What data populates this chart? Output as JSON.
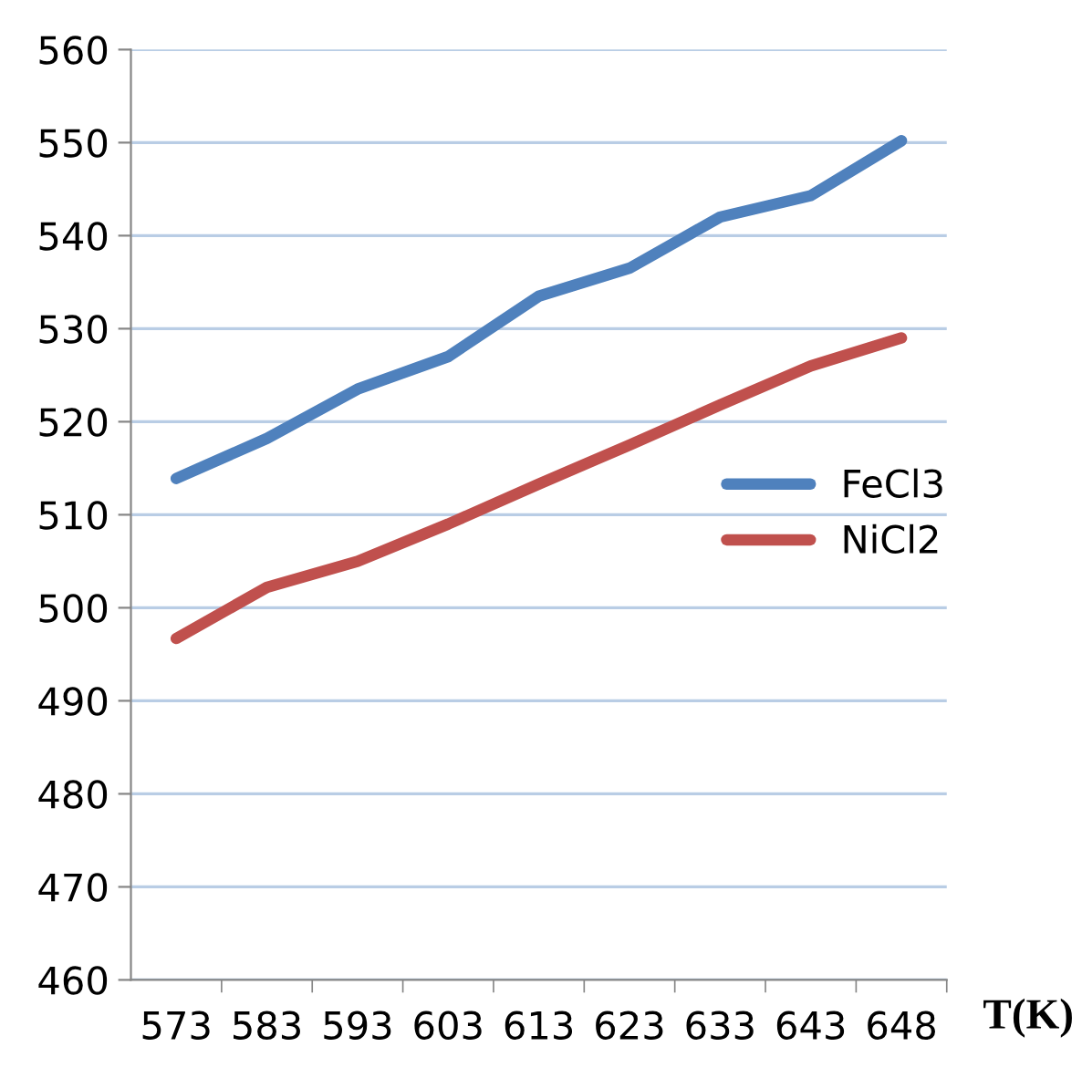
{
  "chart_data": {
    "type": "line",
    "xlabel": "T(K)",
    "categories": [
      "573",
      "583",
      "593",
      "603",
      "613",
      "623",
      "633",
      "643",
      "648"
    ],
    "ylim": [
      460,
      560
    ],
    "yticks": [
      460,
      470,
      480,
      490,
      500,
      510,
      520,
      530,
      540,
      550,
      560
    ],
    "grid": "y",
    "legend": "right",
    "line_style": "solid",
    "marker": "none",
    "series": [
      {
        "name": "FeCl3",
        "color": "#4f81bd",
        "values": [
          513.9,
          518.2,
          523.5,
          527,
          533.5,
          536.5,
          542,
          544.3,
          550.2
        ]
      },
      {
        "name": "NiCl2",
        "color": "#c0504d",
        "values": [
          496.7,
          502.2,
          505,
          509,
          513.3,
          517.5,
          521.8,
          526,
          529
        ]
      }
    ]
  }
}
